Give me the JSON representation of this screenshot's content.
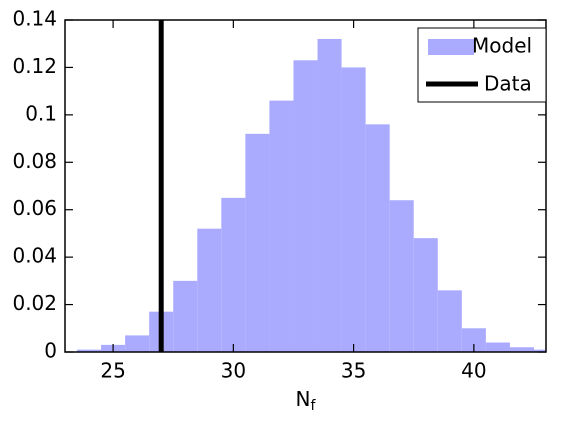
{
  "chart_data": {
    "type": "histogram",
    "bins": [
      23.5,
      24.5,
      25.5,
      26.5,
      27.5,
      28.5,
      29.5,
      30.5,
      31.5,
      32.5,
      33.5,
      34.5,
      35.5,
      36.5,
      37.5,
      38.5,
      39.5,
      40.5,
      41.5,
      42.5,
      43.5
    ],
    "counts": [
      0.001,
      0.003,
      0.007,
      0.017,
      0.03,
      0.052,
      0.065,
      0.092,
      0.106,
      0.123,
      0.132,
      0.12,
      0.096,
      0.064,
      0.048,
      0.026,
      0.01,
      0.004,
      0.002,
      0.001
    ],
    "name": "Model",
    "color": "#aaaaff",
    "vline": {
      "name": "Data",
      "x": 27,
      "color": "#000000"
    },
    "xlabel": {
      "text": "N",
      "subscript": "f"
    },
    "xlim": [
      23,
      43
    ],
    "ylim": [
      0,
      0.14
    ],
    "xticks": [
      25,
      30,
      35,
      40
    ],
    "yticks": [
      0,
      0.02,
      0.04,
      0.06,
      0.08,
      0.1,
      0.12,
      0.14
    ],
    "legend": "upper right"
  }
}
